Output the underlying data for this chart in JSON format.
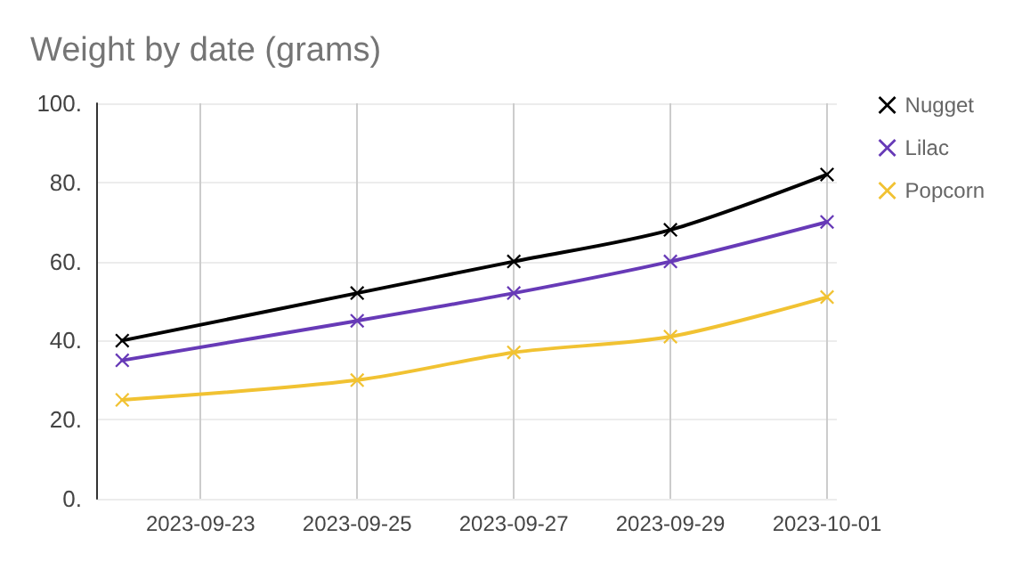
{
  "chart_data": {
    "type": "line",
    "title": "Weight by date (grams)",
    "x": [
      "2023-09-22",
      "2023-09-25",
      "2023-09-27",
      "2023-09-29",
      "2023-10-01"
    ],
    "series": [
      {
        "name": "Nugget",
        "color": "#000000",
        "values": [
          40,
          52,
          60,
          68,
          82
        ]
      },
      {
        "name": "Lilac",
        "color": "#673ab7",
        "values": [
          35,
          45,
          52,
          60,
          70
        ]
      },
      {
        "name": "Popcorn",
        "color": "#f1c232",
        "values": [
          25,
          30,
          37,
          41,
          51
        ]
      }
    ],
    "xlim": [
      "2023-09-21T16:00",
      "2023-10-01T03:00"
    ],
    "xticks": [
      "2023-09-23",
      "2023-09-25",
      "2023-09-27",
      "2023-09-29",
      "2023-10-01"
    ],
    "ylim": [
      0,
      100
    ],
    "yticks": [
      {
        "value": 0,
        "label": "0."
      },
      {
        "value": 20,
        "label": "20."
      },
      {
        "value": 40,
        "label": "40."
      },
      {
        "value": 60,
        "label": "60."
      },
      {
        "value": 80,
        "label": "80."
      },
      {
        "value": 100,
        "label": "100."
      }
    ],
    "grid": true,
    "legend": "top right",
    "marker": "cross",
    "line_style": "solid"
  }
}
